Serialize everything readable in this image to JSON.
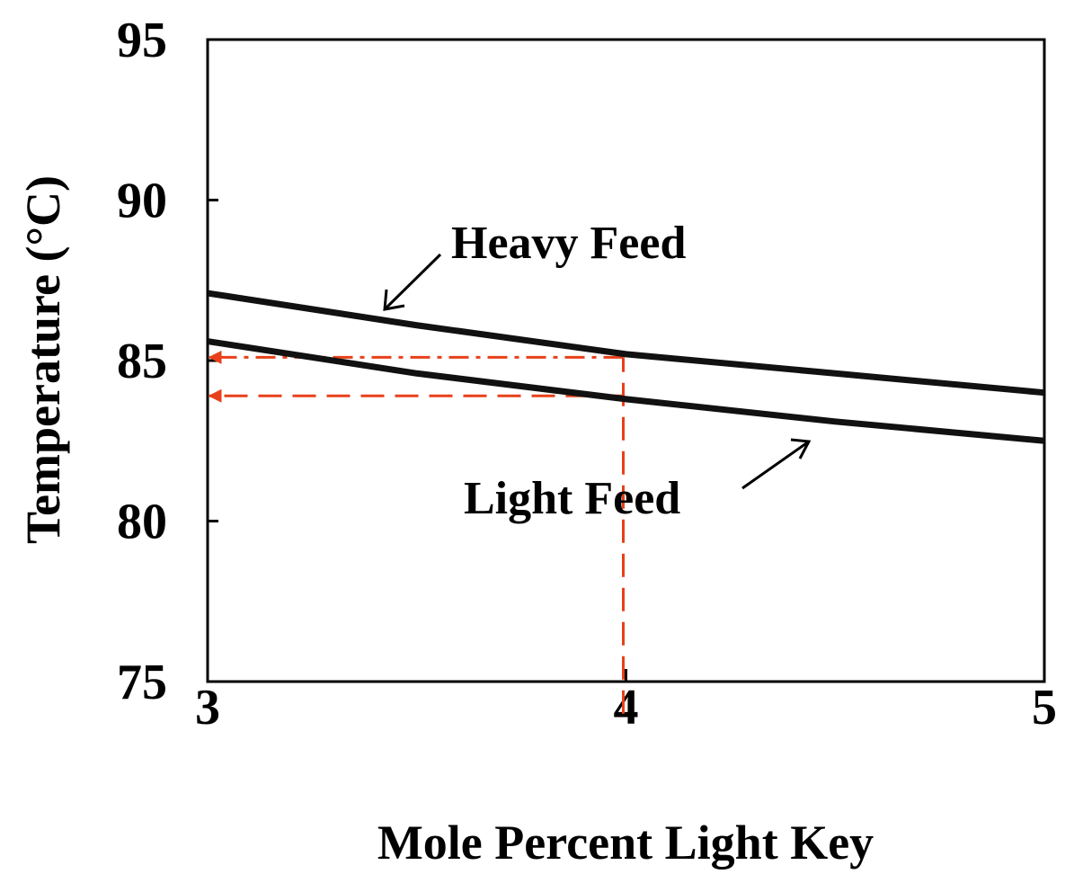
{
  "chart_data": {
    "type": "line",
    "title": "",
    "xlabel": "Mole Percent Light Key",
    "ylabel": "Temperature (°C)",
    "xlim": [
      3,
      5
    ],
    "ylim": [
      75,
      95
    ],
    "xticks": [
      "3",
      "4",
      "5"
    ],
    "yticks": [
      "95",
      "90",
      "85",
      "80",
      "75"
    ],
    "x_tick_values": [
      3,
      4,
      5
    ],
    "y_tick_values": [
      95,
      90,
      85,
      80,
      75
    ],
    "grid": false,
    "series": [
      {
        "name": "Heavy Feed",
        "x": [
          3,
          3.5,
          4,
          4.5,
          5
        ],
        "y": [
          87.1,
          86.1,
          85.2,
          84.6,
          84.0
        ],
        "color": "#111111"
      },
      {
        "name": "Light Feed",
        "x": [
          3,
          3.5,
          4,
          4.5,
          5
        ],
        "y": [
          85.6,
          84.6,
          83.8,
          83.1,
          82.5
        ],
        "color": "#111111"
      }
    ],
    "annotations": [
      {
        "text": "Heavy Feed",
        "points_to_series": "Heavy Feed"
      },
      {
        "text": "Light Feed",
        "points_to_series": "Light Feed"
      }
    ],
    "reference_lines": [
      {
        "style": "dashed",
        "color": "#e8401a",
        "x": 4,
        "from_y": 74,
        "to_y": 85.1,
        "direction": "vertical"
      },
      {
        "style": "dash-dot",
        "color": "#e8401a",
        "y": 85.1,
        "from_x": 4,
        "to_x": 3,
        "direction": "horizontal-arrow"
      },
      {
        "style": "dashed",
        "color": "#e8401a",
        "y": 83.9,
        "from_x": 4,
        "to_x": 3,
        "direction": "horizontal-arrow"
      }
    ]
  }
}
